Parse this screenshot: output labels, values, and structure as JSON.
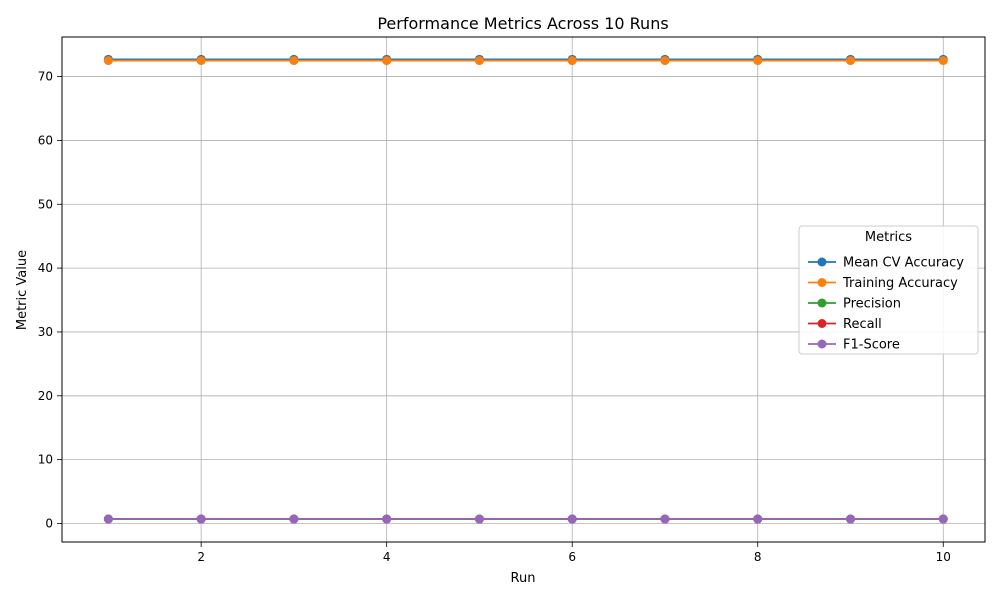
{
  "chart_data": {
    "type": "line",
    "title": "Performance Metrics Across 10 Runs",
    "xlabel": "Run",
    "ylabel": "Metric Value",
    "xlim": [
      0.5,
      10.45
    ],
    "ylim": [
      -2.9,
      76.2
    ],
    "x": [
      1,
      2,
      3,
      4,
      5,
      6,
      7,
      8,
      9,
      10
    ],
    "xticks": [
      2,
      4,
      6,
      8,
      10
    ],
    "yticks": [
      0,
      10,
      20,
      30,
      40,
      50,
      60,
      70
    ],
    "grid": true,
    "legend": {
      "title": "Metrics",
      "placement": "center-right"
    },
    "series": [
      {
        "name": "Mean CV Accuracy",
        "color": "#1f77b4",
        "values": [
          72.7,
          72.7,
          72.7,
          72.7,
          72.7,
          72.7,
          72.7,
          72.7,
          72.7,
          72.7
        ]
      },
      {
        "name": "Training Accuracy",
        "color": "#ff7f0e",
        "values": [
          72.5,
          72.5,
          72.5,
          72.5,
          72.5,
          72.5,
          72.5,
          72.5,
          72.5,
          72.5
        ]
      },
      {
        "name": "Precision",
        "color": "#2ca02c",
        "values": [
          0.7,
          0.7,
          0.7,
          0.7,
          0.7,
          0.7,
          0.7,
          0.7,
          0.7,
          0.7
        ]
      },
      {
        "name": "Recall",
        "color": "#d62728",
        "values": [
          0.7,
          0.7,
          0.7,
          0.7,
          0.7,
          0.7,
          0.7,
          0.7,
          0.7,
          0.7
        ]
      },
      {
        "name": "F1-Score",
        "color": "#9467bd",
        "values": [
          0.7,
          0.7,
          0.7,
          0.7,
          0.7,
          0.7,
          0.7,
          0.7,
          0.7,
          0.7
        ]
      }
    ]
  }
}
